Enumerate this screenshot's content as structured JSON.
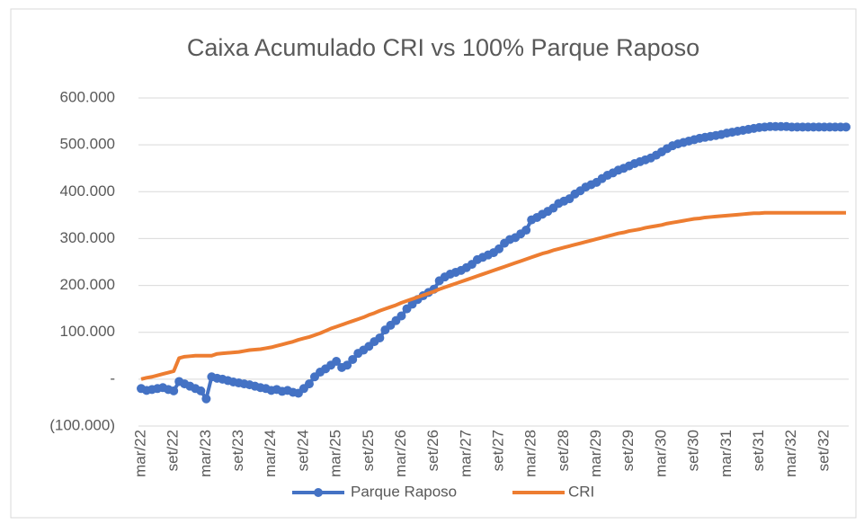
{
  "chart_data": {
    "type": "line",
    "title": "Caixa Acumulado CRI vs 100% Parque Raposo",
    "categories": [
      "mar/22",
      null,
      null,
      null,
      null,
      null,
      "set/22",
      null,
      null,
      null,
      null,
      null,
      "mar/23",
      null,
      null,
      null,
      null,
      null,
      "set/23",
      null,
      null,
      null,
      null,
      null,
      "mar/24",
      null,
      null,
      null,
      null,
      null,
      "set/24",
      null,
      null,
      null,
      null,
      null,
      "mar/25",
      null,
      null,
      null,
      null,
      null,
      "set/25",
      null,
      null,
      null,
      null,
      null,
      "mar/26",
      null,
      null,
      null,
      null,
      null,
      "set/26",
      null,
      null,
      null,
      null,
      null,
      "mar/27",
      null,
      null,
      null,
      null,
      null,
      "set/27",
      null,
      null,
      null,
      null,
      null,
      "mar/28",
      null,
      null,
      null,
      null,
      null,
      "set/28",
      null,
      null,
      null,
      null,
      null,
      "mar/29",
      null,
      null,
      null,
      null,
      null,
      "set/29",
      null,
      null,
      null,
      null,
      null,
      "mar/30",
      null,
      null,
      null,
      null,
      null,
      "set/30",
      null,
      null,
      null,
      null,
      null,
      "mar/31",
      null,
      null,
      null,
      null,
      null,
      "set/31",
      null,
      null,
      null,
      null,
      null,
      "mar/32",
      null,
      null,
      null,
      null,
      null,
      "set/32",
      null,
      null,
      null,
      null
    ],
    "series": [
      {
        "name": "Parque Raposo",
        "color": "#4472c4",
        "marker": true,
        "values": [
          -20000,
          -24000,
          -22000,
          -20000,
          -18000,
          -22000,
          -25000,
          -5000,
          -10000,
          -15000,
          -20000,
          -25000,
          -42000,
          5000,
          2000,
          0,
          -3000,
          -6000,
          -8000,
          -10000,
          -12000,
          -15000,
          -18000,
          -20000,
          -24000,
          -22000,
          -26000,
          -24000,
          -28000,
          -30000,
          -20000,
          -10000,
          5000,
          15000,
          22000,
          30000,
          38000,
          25000,
          30000,
          42000,
          55000,
          62000,
          70000,
          80000,
          88000,
          105000,
          115000,
          125000,
          135000,
          150000,
          160000,
          170000,
          178000,
          185000,
          192000,
          210000,
          218000,
          224000,
          228000,
          232000,
          238000,
          245000,
          255000,
          260000,
          265000,
          270000,
          278000,
          290000,
          298000,
          302000,
          310000,
          318000,
          340000,
          345000,
          352000,
          358000,
          365000,
          375000,
          380000,
          385000,
          395000,
          402000,
          410000,
          415000,
          420000,
          428000,
          435000,
          440000,
          446000,
          450000,
          455000,
          460000,
          464000,
          468000,
          472000,
          478000,
          485000,
          492000,
          498000,
          502000,
          505000,
          508000,
          511000,
          514000,
          516000,
          518000,
          520000,
          522000,
          525000,
          527000,
          529000,
          531000,
          533000,
          535000,
          537000,
          538000,
          539000,
          539000,
          539000,
          539000,
          538000,
          538000,
          538000,
          538000,
          538000,
          538000,
          538000,
          538000,
          538000,
          538000,
          538000
        ]
      },
      {
        "name": "CRI",
        "color": "#ed7d31",
        "marker": false,
        "values": [
          0,
          3000,
          5000,
          8000,
          11000,
          14000,
          17000,
          45000,
          48000,
          49000,
          50000,
          50000,
          50000,
          50000,
          54000,
          55000,
          56000,
          57000,
          58000,
          60000,
          62000,
          63000,
          64000,
          66000,
          68000,
          71000,
          74000,
          77000,
          80000,
          84000,
          87000,
          90000,
          94000,
          98000,
          103000,
          108000,
          112000,
          116000,
          120000,
          124000,
          128000,
          132000,
          137000,
          141000,
          146000,
          150000,
          154000,
          158000,
          163000,
          167000,
          171000,
          175000,
          179000,
          183000,
          187000,
          192000,
          196000,
          200000,
          204000,
          208000,
          212000,
          216000,
          220000,
          224000,
          228000,
          232000,
          236000,
          240000,
          244000,
          248000,
          252000,
          256000,
          260000,
          264000,
          268000,
          271000,
          275000,
          278000,
          281000,
          284000,
          287000,
          290000,
          293000,
          296000,
          299000,
          302000,
          305000,
          308000,
          311000,
          313000,
          316000,
          318000,
          320000,
          323000,
          325000,
          327000,
          329000,
          332000,
          334000,
          336000,
          338000,
          340000,
          342000,
          343000,
          345000,
          346000,
          347000,
          348000,
          349000,
          350000,
          351000,
          352000,
          353000,
          354000,
          354000,
          355000,
          355000,
          355000,
          355000,
          355000,
          355000,
          355000,
          355000,
          355000,
          355000,
          355000,
          355000,
          355000,
          355000,
          355000,
          355000
        ]
      }
    ],
    "ylim": [
      -100000,
      600000
    ],
    "yticks": [
      {
        "value": -100000,
        "label": "(100.000)"
      },
      {
        "value": 0,
        "label": "-"
      },
      {
        "value": 100000,
        "label": "100.000"
      },
      {
        "value": 200000,
        "label": "200.000"
      },
      {
        "value": 300000,
        "label": "300.000"
      },
      {
        "value": 400000,
        "label": "400.000"
      },
      {
        "value": 500000,
        "label": "500.000"
      },
      {
        "value": 600000,
        "label": "600.000"
      }
    ],
    "grid": true,
    "legend": "bottom"
  }
}
